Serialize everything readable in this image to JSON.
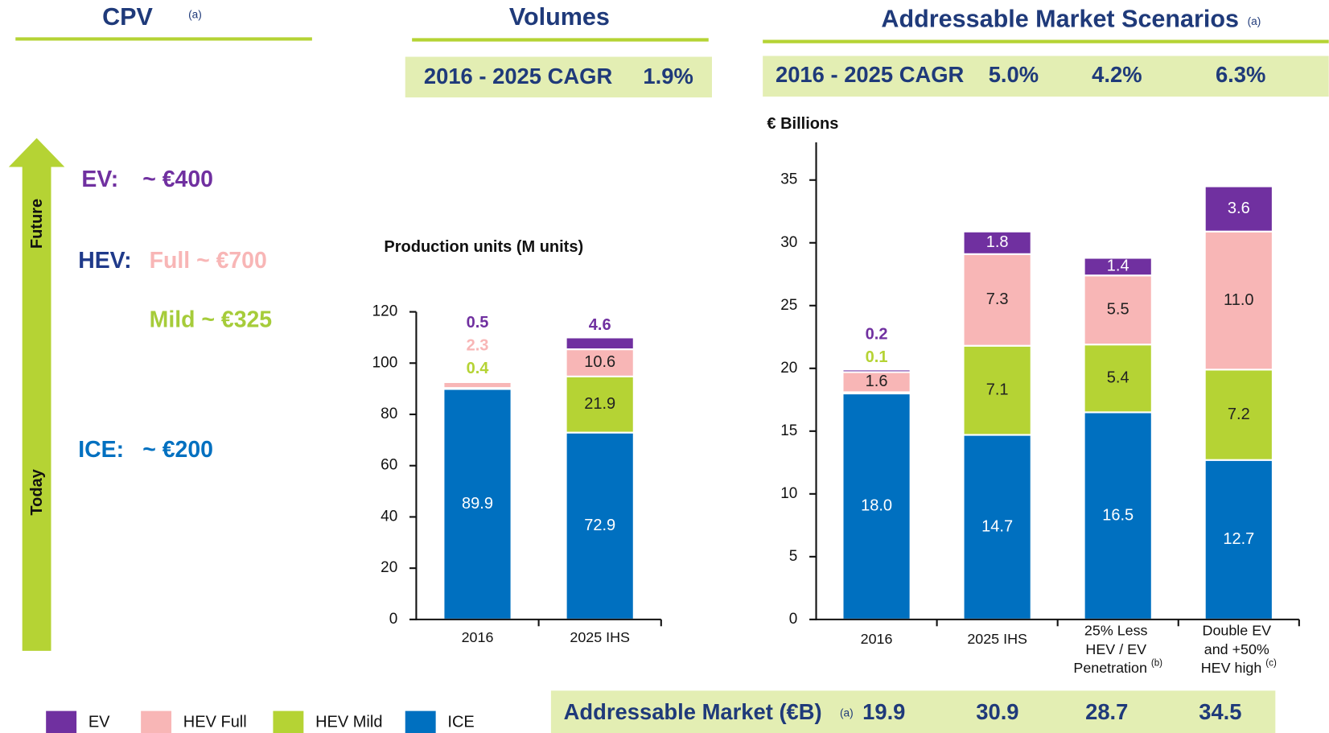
{
  "cpv": {
    "title": "CPV",
    "note": "(a)",
    "arrow_top": "Future",
    "arrow_bottom": "Today",
    "rows": [
      {
        "label": "EV:",
        "text": "~ €400"
      },
      {
        "label": "HEV:",
        "text": "Full ~ €700"
      },
      {
        "text": "Mild ~ €325"
      },
      {
        "label": "ICE:",
        "text": "~ €200"
      }
    ]
  },
  "volumes": {
    "title": "Volumes",
    "cagr_label": "2016 - 2025 CAGR",
    "cagr": "1.9%"
  },
  "market": {
    "title": "Addressable Market Scenarios",
    "note": "(a)",
    "cagr_label": "2016 - 2025 CAGR",
    "cagr": [
      "5.0%",
      "4.2%",
      "6.3%"
    ],
    "total_label": "Addressable Market (€B)",
    "total_note": "(a)",
    "totals": [
      19.9,
      30.9,
      28.7,
      34.5
    ]
  },
  "chart_data": [
    {
      "type": "bar",
      "stacked": true,
      "y_label": "Production units (M units)",
      "categories": [
        "2016",
        "2025 IHS"
      ],
      "series": [
        {
          "name": "ICE",
          "color": "#0070c0",
          "label_color": "#ffffff",
          "values": [
            89.9,
            72.9
          ]
        },
        {
          "name": "HEV Mild",
          "color": "#b5d334",
          "label_color": "#222222",
          "values": [
            0.4,
            21.9
          ]
        },
        {
          "name": "HEV Full",
          "color": "#f8b6b6",
          "label_color": "#222222",
          "values": [
            2.3,
            10.6
          ]
        },
        {
          "name": "EV",
          "color": "#7030a0",
          "label_color": "#ffffff",
          "values": [
            0.5,
            4.6
          ]
        }
      ],
      "ylim": [
        0,
        120
      ],
      "yticks": [
        0,
        20,
        40,
        60,
        80,
        100,
        120
      ]
    },
    {
      "type": "bar",
      "stacked": true,
      "y_label": "€ Billions",
      "categories": [
        "2016",
        "2025 IHS",
        "25% Less HEV / EV Penetration (b)",
        "Double EV and +50% HEV high (c)"
      ],
      "series": [
        {
          "name": "ICE",
          "color": "#0070c0",
          "label_color": "#ffffff",
          "values": [
            18,
            14.7,
            16.5,
            12.7
          ],
          "value_labels": [
            "18.0",
            "14.7",
            "16.5",
            "12.7"
          ]
        },
        {
          "name": "HEV Mild",
          "color": "#b5d334",
          "label_color": "#222222",
          "values": [
            0.1,
            7.1,
            5.4,
            7.2
          ]
        },
        {
          "name": "HEV Full",
          "color": "#f8b6b6",
          "label_color": "#222222",
          "values": [
            1.6,
            7.3,
            5.5,
            11
          ],
          "value_labels": [
            "1.6",
            "7.3",
            "5.5",
            "11.0"
          ]
        },
        {
          "name": "EV",
          "color": "#7030a0",
          "label_color": "#ffffff",
          "values": [
            0.2,
            1.8,
            1.4,
            3.6
          ]
        }
      ],
      "ylim": [
        0,
        38
      ],
      "yticks": [
        0,
        5,
        10,
        15,
        20,
        25,
        30,
        35
      ]
    }
  ]
}
